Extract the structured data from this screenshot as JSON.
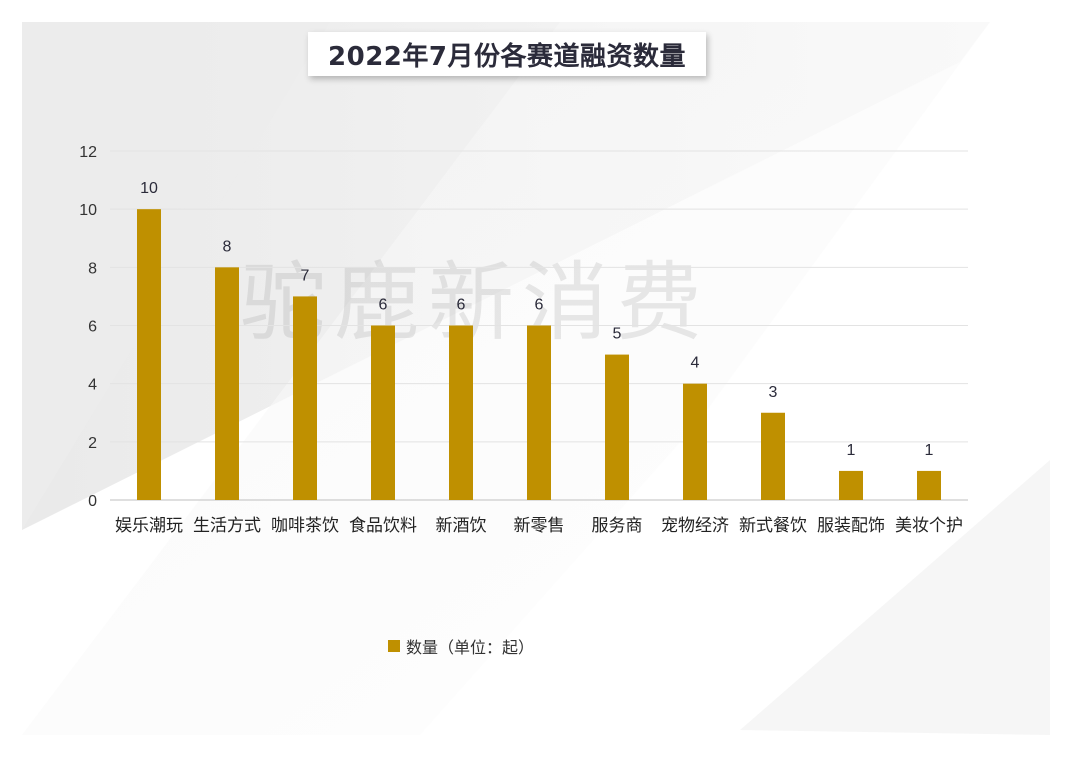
{
  "chart_data": {
    "type": "bar",
    "title": "2022年7月份各赛道融资数量",
    "categories": [
      "娱乐潮玩",
      "生活方式",
      "咖啡茶饮",
      "食品饮料",
      "新酒饮",
      "新零售",
      "服务商",
      "宠物经济",
      "新式餐饮",
      "服装配饰",
      "美妆个护"
    ],
    "series": [
      {
        "name": "数量（单位：起）",
        "values": [
          10,
          8,
          7,
          6,
          6,
          6,
          5,
          4,
          3,
          1,
          1
        ],
        "color": "#bf9000"
      }
    ],
    "y_ticks": [
      "0",
      "2",
      "4",
      "6",
      "8",
      "10",
      "12"
    ],
    "ylim": [
      0,
      12
    ],
    "grid": true,
    "legend_position": "bottom"
  },
  "watermark": "驼鹿新消费"
}
